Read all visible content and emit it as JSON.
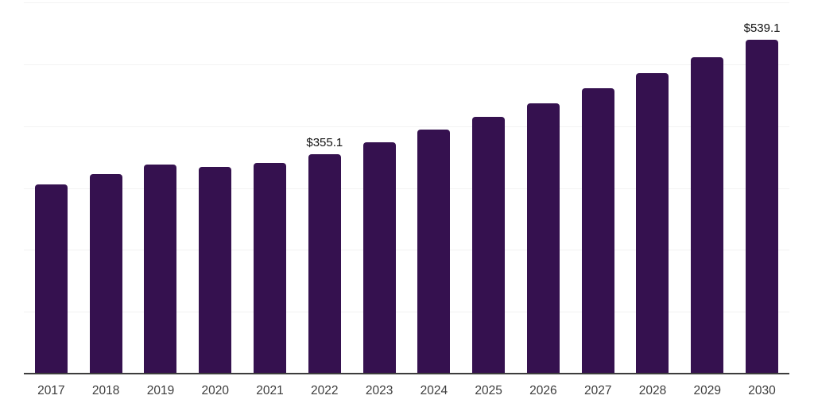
{
  "chart_data": {
    "type": "bar",
    "title": "",
    "xlabel": "",
    "ylabel": "",
    "categories": [
      "2017",
      "2018",
      "2019",
      "2020",
      "2021",
      "2022",
      "2023",
      "2024",
      "2025",
      "2026",
      "2027",
      "2028",
      "2029",
      "2030"
    ],
    "values": [
      306.3,
      322.5,
      338.5,
      334.6,
      339.9,
      355.1,
      374.1,
      394.1,
      415.2,
      437.5,
      460.9,
      485.6,
      511.6,
      539.1
    ],
    "data_labels": [
      "",
      "",
      "",
      "",
      "",
      "$355.1",
      "",
      "",
      "",
      "",
      "",
      "",
      "",
      "$539.1"
    ],
    "ylim": [
      0,
      600
    ],
    "grid": true,
    "gridline_interval": 100,
    "legend": "none",
    "colors": {
      "bar": "#35114F",
      "gridline": "#F2F2F2",
      "axis_line": "#3D3D3D",
      "tick_label": "#3D3D3D",
      "data_label": "#111111",
      "background": "#FFFFFF"
    }
  }
}
